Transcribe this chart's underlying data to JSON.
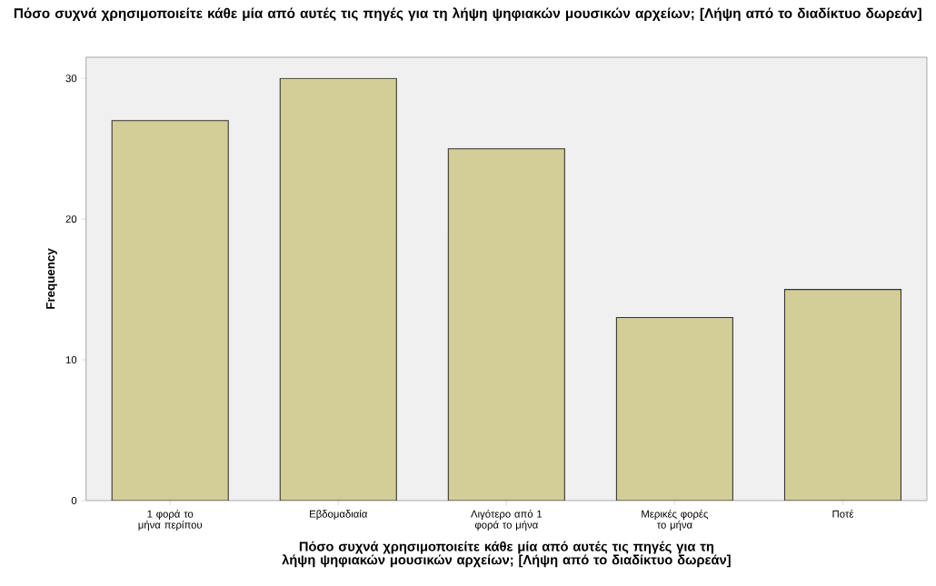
{
  "chart_data": {
    "type": "bar",
    "title": "Πόσο συχνά χρησιμοποιείτε κάθε μία από αυτές τις πηγές για τη λήψη ψηφιακών μουσικών αρχείων; [Λήψη από το διαδίκτυο δωρεάν]",
    "xlabel": "Πόσο συχνά χρησιμοποιείτε κάθε μία από αυτές τις πηγές για τη λήψη ψηφιακών μουσικών αρχείων; [Λήψη από το διαδίκτυο δωρεάν]",
    "ylabel": "Frequency",
    "categories": [
      "1 φορά το μήνα περίπου",
      "Εβδομαδιαία",
      "Λιγότερο από 1 φορά το μήνα",
      "Μερικές φορές το μήνα",
      "Ποτέ"
    ],
    "values": [
      27,
      30,
      25,
      13,
      15
    ],
    "color": "#d3ce97",
    "ylim": [
      0,
      31.5
    ],
    "yticks": [
      0,
      10,
      20,
      30
    ],
    "grid": false
  }
}
